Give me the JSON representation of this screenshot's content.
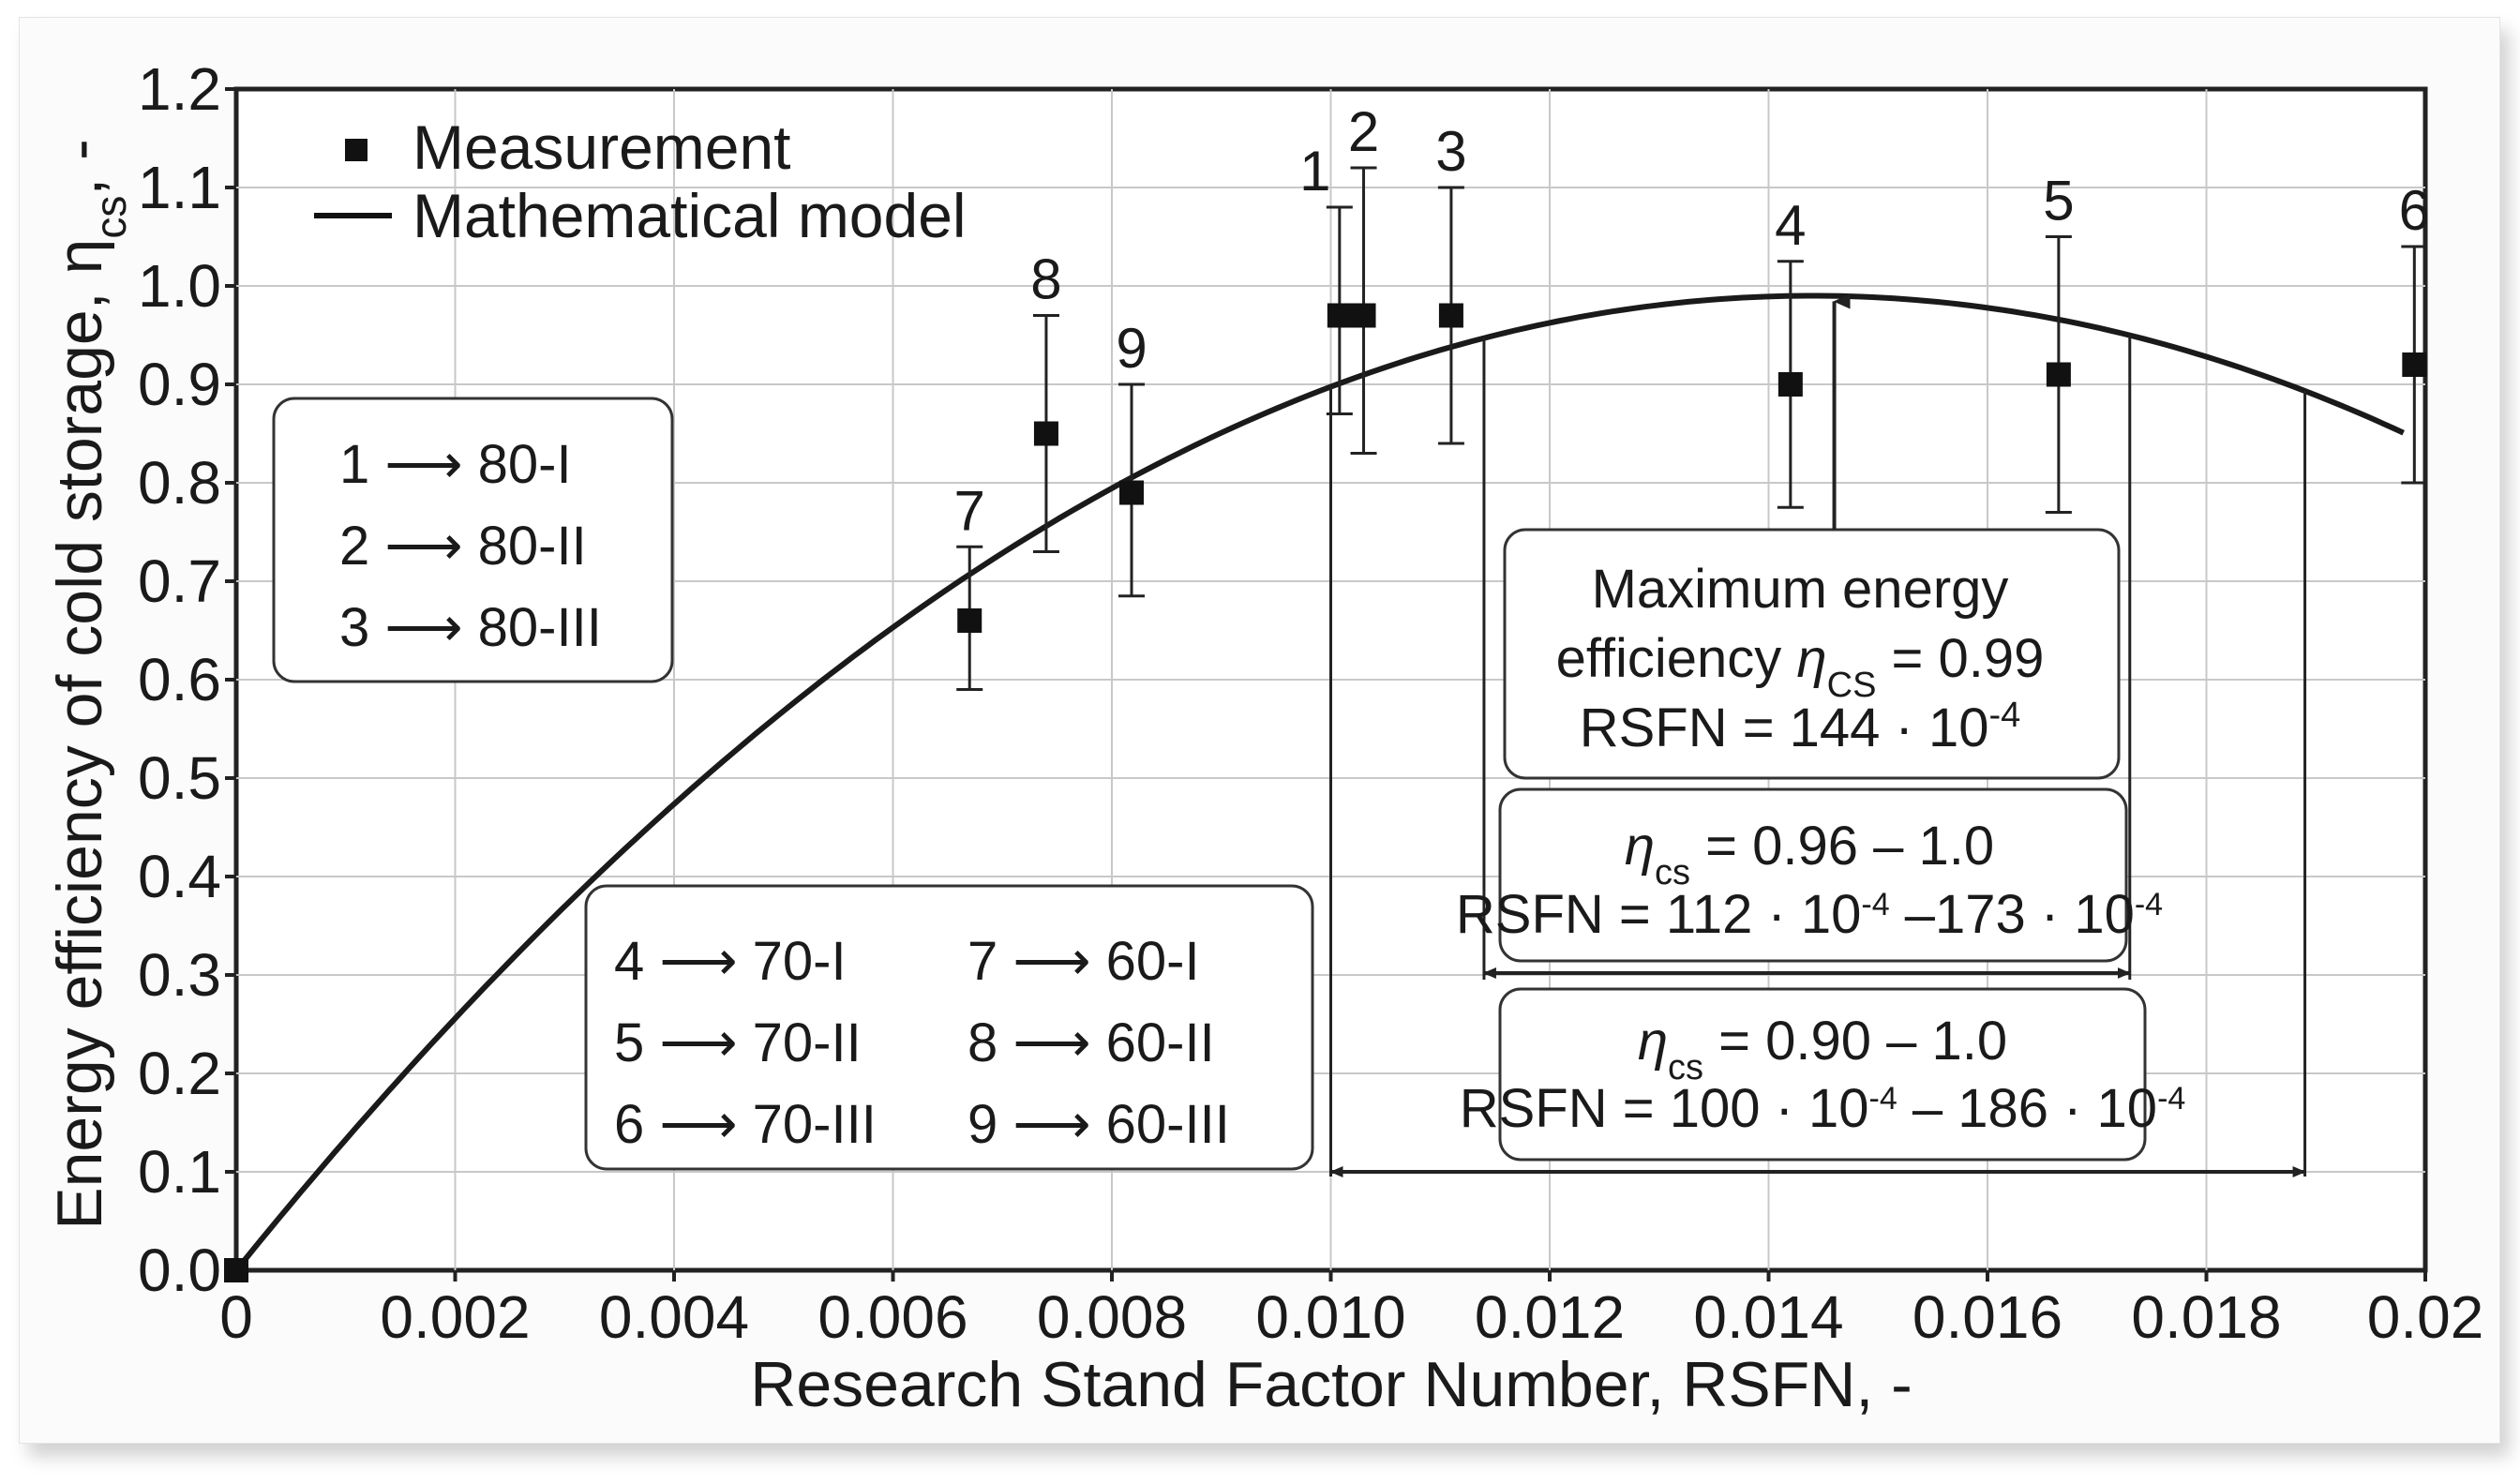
{
  "chart_data": {
    "type": "scatter",
    "xlabel": "Research Stand Factor Number, RSFN, -",
    "ylabel_main": "Energy efficiency of cold storage, η",
    "ylabel_sub": "cs",
    "ylabel_end": ", -",
    "xlim": [
      0,
      0.02
    ],
    "ylim": [
      0,
      1.2
    ],
    "x_ticks": [
      0,
      0.002,
      0.004,
      0.006,
      0.008,
      0.01,
      0.012,
      0.014,
      0.016,
      0.018,
      0.02
    ],
    "x_tick_labels": [
      "0",
      "0.002",
      "0.004",
      "0.006",
      "0.008",
      "0.010",
      "0.012",
      "0.014",
      "0.016",
      "0.018",
      "0.02"
    ],
    "y_ticks": [
      0,
      0.1,
      0.2,
      0.3,
      0.4,
      0.5,
      0.6,
      0.7,
      0.8,
      0.9,
      1.0,
      1.1,
      1.2
    ],
    "y_tick_labels": [
      "0.0",
      "0.1",
      "0.2",
      "0.3",
      "0.4",
      "0.5",
      "0.6",
      "0.7",
      "0.8",
      "0.9",
      "1.0",
      "1.1",
      "1.2"
    ],
    "grid": true,
    "legend": {
      "position": "top-left",
      "entries": [
        "Measurement",
        "Mathematical model"
      ]
    },
    "measurements": [
      {
        "label": "1",
        "x": 0.01008,
        "y": 0.97,
        "lo": 0.87,
        "hi": 1.08
      },
      {
        "label": "2",
        "x": 0.0103,
        "y": 0.97,
        "lo": 0.83,
        "hi": 1.12
      },
      {
        "label": "3",
        "x": 0.0111,
        "y": 0.97,
        "lo": 0.84,
        "hi": 1.1
      },
      {
        "label": "4",
        "x": 0.0142,
        "y": 0.9,
        "lo": 0.775,
        "hi": 1.025
      },
      {
        "label": "5",
        "x": 0.01665,
        "y": 0.91,
        "lo": 0.77,
        "hi": 1.05
      },
      {
        "label": "6",
        "x": 0.0199,
        "y": 0.92,
        "lo": 0.8,
        "hi": 1.04
      },
      {
        "label": "7",
        "x": 0.0067,
        "y": 0.66,
        "lo": 0.59,
        "hi": 0.735
      },
      {
        "label": "8",
        "x": 0.0074,
        "y": 0.85,
        "lo": 0.73,
        "hi": 0.97
      },
      {
        "label": "9",
        "x": 0.00818,
        "y": 0.79,
        "lo": 0.685,
        "hi": 0.9
      }
    ],
    "origin_point": {
      "x": 0,
      "y": 0
    },
    "model": {
      "name": "Mathematical model",
      "x_max": 0.0144,
      "y_max": 0.99,
      "x_end": 0.0198,
      "y_end": 0.845
    },
    "annotations": {
      "max_box": {
        "line1": "Maximum energy",
        "line2_pre": "efficiency ",
        "line2_eta": "η",
        "line2_sub": "CS",
        "line2_post": " = 0.99",
        "line3": "RSFN = 144 · 10",
        "line3_sup": "-4",
        "arrow_x": 0.0146
      },
      "range_096": {
        "eta": "η",
        "sub": "cs",
        "value": " = 0.96 – 1.0",
        "rsfn_a": "RSFN = 112 · 10",
        "sup_a": "-4",
        "rsfn_b": " –173 · 10",
        "sup_b": "-4",
        "x_from": 0.0114,
        "x_to": 0.0173
      },
      "range_090": {
        "eta": "η",
        "sub": "cs",
        "value": " = 0.90 – 1.0",
        "rsfn_a": "RSFN = 100 · 10",
        "sup_a": "-4",
        "rsfn_b": " – 186 · 10",
        "sup_b": "-4",
        "x_from": 0.01,
        "x_to": 0.0189
      }
    },
    "key_box_1": [
      "1 ⟶ 80-I",
      "2 ⟶ 80-II",
      "3 ⟶ 80-III"
    ],
    "key_box_2_left": [
      "4 ⟶ 70-I",
      "5 ⟶ 70-II",
      "6 ⟶ 70-III"
    ],
    "key_box_2_right": [
      "7 ⟶ 60-I",
      "8 ⟶ 60-II",
      "9 ⟶ 60-III"
    ]
  }
}
